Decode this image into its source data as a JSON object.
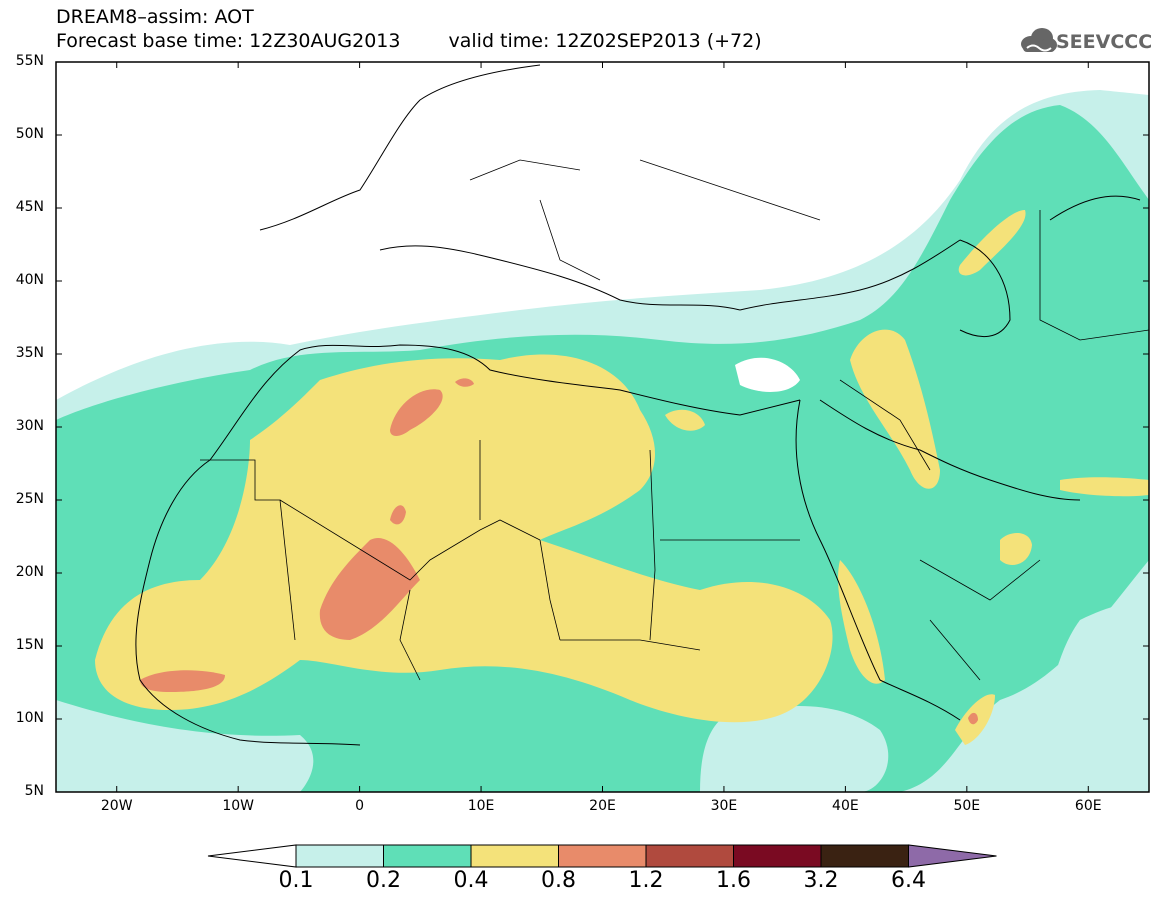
{
  "header": {
    "line1": "DREAM8–assim: AOT",
    "base_time": "Forecast base time: 12Z30AUG2013",
    "valid_time": "valid time: 12Z02SEP2013 (+72)"
  },
  "logo": {
    "text": "SEEVCCC",
    "icon": "cloud-icon"
  },
  "map": {
    "lat_labels": [
      "55N",
      "50N",
      "45N",
      "40N",
      "35N",
      "30N",
      "25N",
      "20N",
      "15N",
      "10N",
      "5N"
    ],
    "lon_labels": [
      "20W",
      "10W",
      "0",
      "10E",
      "20E",
      "30E",
      "40E",
      "50E",
      "60E"
    ],
    "lon_range": [
      -25,
      65
    ],
    "lat_range": [
      5,
      55
    ]
  },
  "legend": {
    "labels": [
      "0.1",
      "0.2",
      "0.4",
      "0.8",
      "1.2",
      "1.6",
      "3.2",
      "6.4"
    ],
    "colors": [
      "#c6f0ea",
      "#5fdfb7",
      "#f4e27a",
      "#e88b6a",
      "#b04a3e",
      "#7a0a22",
      "#3a2212",
      "#8e6aa8"
    ]
  },
  "colors": {
    "background": "#ffffff",
    "border": "#000000"
  }
}
